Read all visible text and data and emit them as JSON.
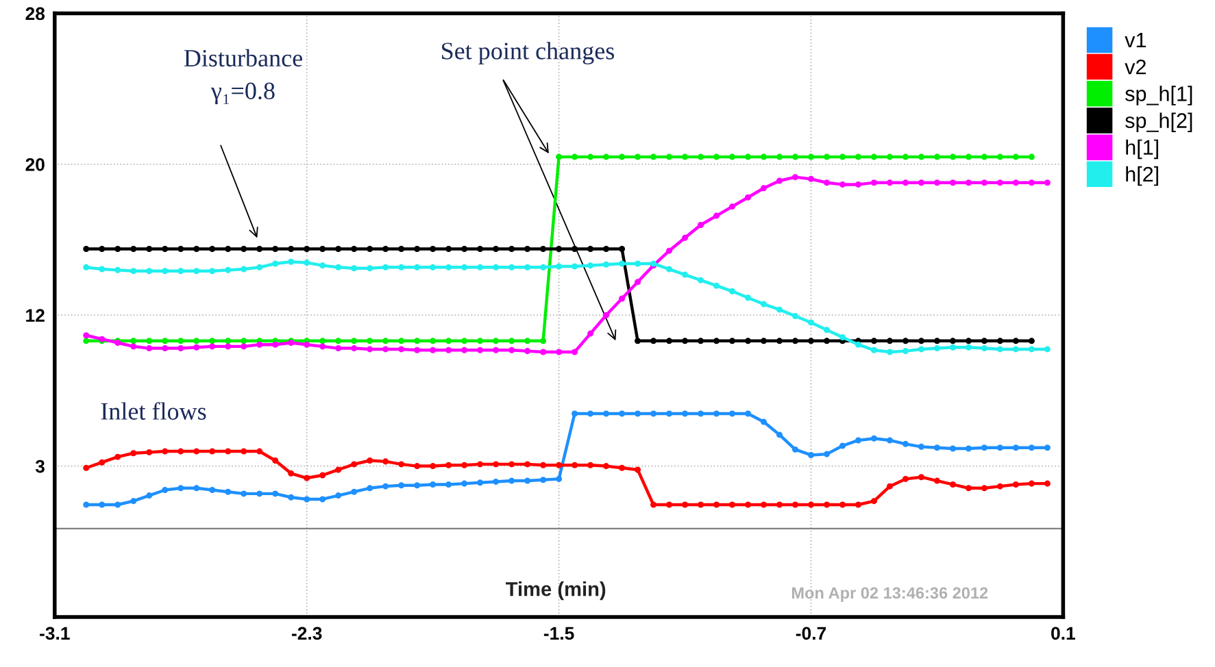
{
  "chart_data": {
    "type": "line",
    "xlabel": "Time (min)",
    "x": [
      -3.0,
      -2.95,
      -2.9,
      -2.85,
      -2.8,
      -2.75,
      -2.7,
      -2.65,
      -2.6,
      -2.55,
      -2.5,
      -2.45,
      -2.4,
      -2.35,
      -2.3,
      -2.25,
      -2.2,
      -2.15,
      -2.1,
      -2.05,
      -2.0,
      -1.95,
      -1.9,
      -1.85,
      -1.8,
      -1.75,
      -1.7,
      -1.65,
      -1.6,
      -1.55,
      -1.5,
      -1.45,
      -1.4,
      -1.35,
      -1.3,
      -1.25,
      -1.2,
      -1.15,
      -1.1,
      -1.05,
      -1.0,
      -0.95,
      -0.9,
      -0.85,
      -0.8,
      -0.75,
      -0.7,
      -0.65,
      -0.6,
      -0.55,
      -0.5,
      -0.45,
      -0.4,
      -0.35,
      -0.3,
      -0.25,
      -0.2,
      -0.15,
      -0.1,
      -0.05,
      0.0,
      0.05
    ],
    "series": [
      {
        "name": "v1",
        "color": "#1e90ff",
        "values": [
          1.3,
          1.3,
          1.3,
          1.5,
          1.8,
          2.1,
          2.2,
          2.2,
          2.1,
          2.0,
          1.9,
          1.9,
          1.9,
          1.7,
          1.6,
          1.6,
          1.8,
          2.0,
          2.2,
          2.3,
          2.35,
          2.35,
          2.4,
          2.4,
          2.45,
          2.5,
          2.55,
          2.6,
          2.6,
          2.65,
          2.7,
          6.25,
          6.25,
          6.25,
          6.25,
          6.25,
          6.25,
          6.25,
          6.25,
          6.25,
          6.25,
          6.25,
          6.25,
          5.8,
          5.1,
          4.3,
          4.0,
          4.05,
          4.5,
          4.8,
          4.9,
          4.8,
          4.6,
          4.45,
          4.4,
          4.35,
          4.35,
          4.4,
          4.4,
          4.4,
          4.4,
          4.4
        ]
      },
      {
        "name": "v2",
        "color": "#ff0000",
        "values": [
          3.3,
          3.6,
          3.9,
          4.1,
          4.15,
          4.2,
          4.2,
          4.2,
          4.2,
          4.2,
          4.2,
          4.2,
          3.7,
          3.0,
          2.75,
          2.9,
          3.2,
          3.5,
          3.7,
          3.65,
          3.5,
          3.4,
          3.4,
          3.45,
          3.45,
          3.5,
          3.5,
          3.5,
          3.5,
          3.45,
          3.45,
          3.45,
          3.45,
          3.4,
          3.3,
          3.2,
          1.3,
          1.3,
          1.3,
          1.3,
          1.3,
          1.3,
          1.3,
          1.3,
          1.3,
          1.3,
          1.3,
          1.3,
          1.3,
          1.3,
          1.5,
          2.3,
          2.7,
          2.8,
          2.6,
          2.4,
          2.2,
          2.2,
          2.3,
          2.4,
          2.45,
          2.45
        ]
      },
      {
        "name": "sp_h[1]",
        "color": "#00ee00",
        "values": [
          10.2,
          10.2,
          10.2,
          10.2,
          10.2,
          10.2,
          10.2,
          10.2,
          10.2,
          10.2,
          10.2,
          10.2,
          10.2,
          10.2,
          10.2,
          10.2,
          10.2,
          10.2,
          10.2,
          10.2,
          10.2,
          10.2,
          10.2,
          10.2,
          10.2,
          10.2,
          10.2,
          10.2,
          10.2,
          10.2,
          20.2,
          20.2,
          20.2,
          20.2,
          20.2,
          20.2,
          20.2,
          20.2,
          20.2,
          20.2,
          20.2,
          20.2,
          20.2,
          20.2,
          20.2,
          20.2,
          20.2,
          20.2,
          20.2,
          20.2,
          20.2,
          20.2,
          20.2,
          20.2,
          20.2,
          20.2,
          20.2,
          20.2,
          20.2,
          20.2,
          20.2,
          null
        ]
      },
      {
        "name": "sp_h[2]",
        "color": "#000000",
        "values": [
          15.2,
          15.2,
          15.2,
          15.2,
          15.2,
          15.2,
          15.2,
          15.2,
          15.2,
          15.2,
          15.2,
          15.2,
          15.2,
          15.2,
          15.2,
          15.2,
          15.2,
          15.2,
          15.2,
          15.2,
          15.2,
          15.2,
          15.2,
          15.2,
          15.2,
          15.2,
          15.2,
          15.2,
          15.2,
          15.2,
          15.2,
          15.2,
          15.2,
          15.2,
          15.2,
          10.2,
          10.2,
          10.2,
          10.2,
          10.2,
          10.2,
          10.2,
          10.2,
          10.2,
          10.2,
          10.2,
          10.2,
          10.2,
          10.2,
          10.2,
          10.2,
          10.2,
          10.2,
          10.2,
          10.2,
          10.2,
          10.2,
          10.2,
          10.2,
          10.2,
          10.2,
          null
        ]
      },
      {
        "name": "h[1]",
        "color": "#ff00ff",
        "values": [
          10.5,
          10.3,
          10.1,
          9.9,
          9.8,
          9.8,
          9.8,
          9.85,
          9.9,
          9.9,
          9.9,
          10.0,
          10.0,
          10.1,
          10.0,
          9.9,
          9.8,
          9.8,
          9.75,
          9.75,
          9.75,
          9.7,
          9.7,
          9.7,
          9.7,
          9.7,
          9.7,
          9.7,
          9.65,
          9.6,
          9.6,
          9.6,
          10.6,
          11.6,
          12.5,
          13.4,
          14.3,
          15.1,
          15.8,
          16.5,
          17.0,
          17.5,
          18.0,
          18.5,
          18.9,
          19.1,
          19.0,
          18.8,
          18.7,
          18.7,
          18.8,
          18.8,
          18.8,
          18.8,
          18.8,
          18.8,
          18.8,
          18.8,
          18.8,
          18.8,
          18.8,
          18.8
        ]
      },
      {
        "name": "h[2]",
        "color": "#22eeee",
        "values": [
          14.2,
          14.1,
          14.05,
          14.0,
          14.0,
          14.0,
          14.0,
          14.0,
          14.0,
          14.05,
          14.1,
          14.2,
          14.4,
          14.5,
          14.45,
          14.3,
          14.2,
          14.15,
          14.15,
          14.2,
          14.2,
          14.2,
          14.2,
          14.2,
          14.2,
          14.2,
          14.2,
          14.2,
          14.2,
          14.2,
          14.25,
          14.25,
          14.3,
          14.35,
          14.4,
          14.4,
          14.4,
          14.1,
          13.8,
          13.5,
          13.2,
          12.9,
          12.55,
          12.2,
          11.9,
          11.55,
          11.2,
          10.8,
          10.4,
          10.0,
          9.7,
          9.6,
          9.65,
          9.75,
          9.8,
          9.85,
          9.85,
          9.8,
          9.75,
          9.75,
          9.75,
          9.75
        ]
      }
    ],
    "xlim": [
      -3.1,
      0.1
    ],
    "xticks": [
      -3.1,
      -2.3,
      -1.5,
      -0.7,
      0.1
    ],
    "ylim": [
      -4.8,
      28
    ],
    "yticks": [
      {
        "value": 3.4,
        "label": "3"
      },
      {
        "value": 11.6,
        "label": "12"
      },
      {
        "value": 19.8,
        "label": "20"
      },
      28
    ],
    "ref_lines": [
      {
        "axis": "y",
        "value": 0,
        "color": "#808080"
      }
    ],
    "annotations": [
      "Disturbance\nγ₁=0.8",
      "Set point changes",
      "Inlet flows",
      "Mon Apr 02 13:46:36 2012"
    ],
    "grid": true,
    "legend": "top right",
    "marker": "circle",
    "line_style": "solid"
  }
}
